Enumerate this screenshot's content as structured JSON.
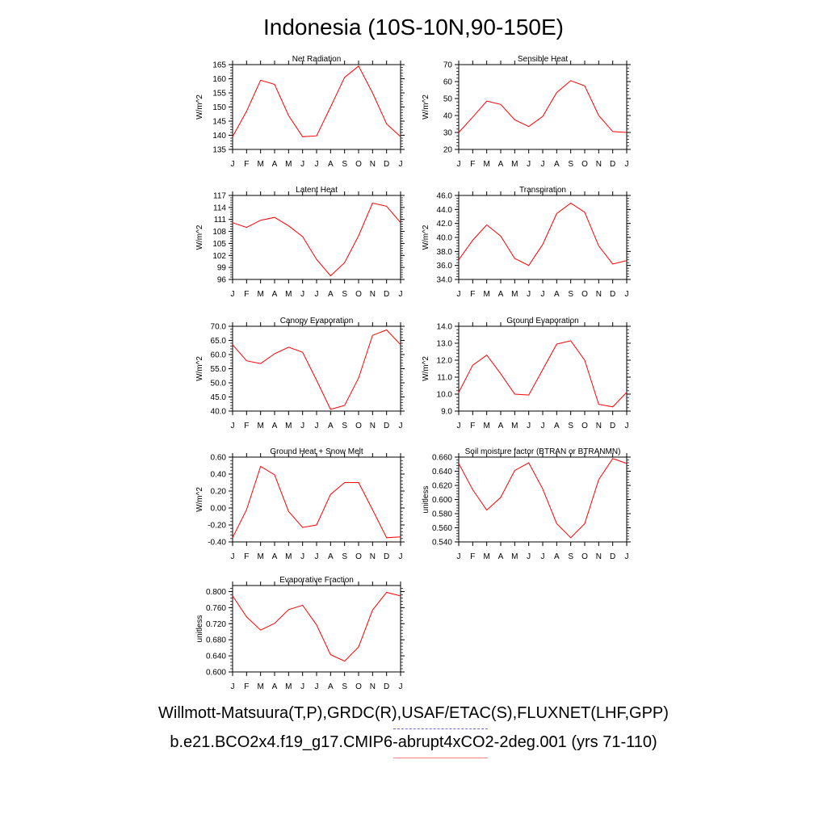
{
  "title": "Indonesia (10S-10N,90-150E)",
  "legend": {
    "obs_label": "Willmott-Matsuura(T,P),GRDC(R),USAF/ETAC(S),FLUXNET(LHF,GPP)",
    "model_label": "b.e21.BCO2x4.f19_g17.CMIP6-abrupt4xCO2-2deg.001 (yrs 71-110)",
    "obs_color": "#6b6bd6",
    "model_color": "#ff0000"
  },
  "chart_data": [
    {
      "type": "line",
      "title": "Net Radiation",
      "ylabel": "W/m^2",
      "ylim": [
        135,
        165
      ],
      "yticks": [
        "135",
        "140",
        "145",
        "150",
        "155",
        "160",
        "165"
      ],
      "categories": [
        "J",
        "F",
        "M",
        "A",
        "M",
        "J",
        "J",
        "A",
        "S",
        "O",
        "N",
        "D",
        "J"
      ],
      "series": [
        {
          "values": [
            139.5,
            148.5,
            159.5,
            158,
            147,
            139.5,
            139.8,
            150,
            160.5,
            164.5,
            155,
            144,
            139.5
          ]
        }
      ]
    },
    {
      "type": "line",
      "title": "Sensible Heat",
      "ylabel": "W/m^2",
      "ylim": [
        20,
        70
      ],
      "yticks": [
        "20",
        "30",
        "40",
        "50",
        "60",
        "70"
      ],
      "categories": [
        "J",
        "F",
        "M",
        "A",
        "M",
        "J",
        "J",
        "A",
        "S",
        "O",
        "N",
        "D",
        "J"
      ],
      "series": [
        {
          "values": [
            30,
            39,
            48.5,
            46.5,
            37.5,
            33.5,
            39.5,
            53.5,
            60.5,
            57.5,
            40,
            30.5,
            30
          ]
        }
      ]
    },
    {
      "type": "line",
      "title": "Latent Heat",
      "ylabel": "W/m^2",
      "ylim": [
        96,
        117
      ],
      "yticks": [
        "96",
        "99",
        "102",
        "105",
        "108",
        "111",
        "114",
        "117"
      ],
      "categories": [
        "J",
        "F",
        "M",
        "A",
        "M",
        "J",
        "J",
        "A",
        "S",
        "O",
        "N",
        "D",
        "J"
      ],
      "series": [
        {
          "values": [
            110.2,
            109,
            110.8,
            111.5,
            109.4,
            106.7,
            101,
            96.9,
            100.2,
            106.9,
            115.1,
            114.3,
            110.2
          ]
        }
      ]
    },
    {
      "type": "line",
      "title": "Transpiration",
      "ylabel": "W/m^2",
      "ylim": [
        34,
        46
      ],
      "yticks": [
        "34.0",
        "36.0",
        "38.0",
        "40.0",
        "42.0",
        "44.0",
        "46.0"
      ],
      "categories": [
        "J",
        "F",
        "M",
        "A",
        "M",
        "J",
        "J",
        "A",
        "S",
        "O",
        "N",
        "D",
        "J"
      ],
      "series": [
        {
          "values": [
            36.8,
            39.6,
            41.8,
            40.2,
            37,
            36,
            39,
            43.4,
            44.9,
            43.6,
            38.8,
            36.2,
            36.7
          ]
        }
      ]
    },
    {
      "type": "line",
      "title": "Canopy Evaporation",
      "ylabel": "W/m^2",
      "ylim": [
        40,
        70
      ],
      "yticks": [
        "40.0",
        "45.0",
        "50.0",
        "55.0",
        "60.0",
        "65.0",
        "70.0"
      ],
      "categories": [
        "J",
        "F",
        "M",
        "A",
        "M",
        "J",
        "J",
        "A",
        "S",
        "O",
        "N",
        "D",
        "J"
      ],
      "series": [
        {
          "values": [
            63.5,
            57.8,
            56.8,
            60.3,
            62.6,
            60.8,
            50.9,
            40.6,
            42,
            51.7,
            66.8,
            68.7,
            63.5
          ]
        }
      ]
    },
    {
      "type": "line",
      "title": "Ground Evaporation",
      "ylabel": "W/m^2",
      "ylim": [
        9,
        14
      ],
      "yticks": [
        "9.0",
        "10.0",
        "11.0",
        "12.0",
        "13.0",
        "14.0"
      ],
      "categories": [
        "J",
        "F",
        "M",
        "A",
        "M",
        "J",
        "J",
        "A",
        "S",
        "O",
        "N",
        "D",
        "J"
      ],
      "series": [
        {
          "values": [
            10.1,
            11.7,
            12.3,
            11.2,
            10,
            9.95,
            11.45,
            12.95,
            13.15,
            12,
            9.4,
            9.25,
            10.1
          ]
        }
      ]
    },
    {
      "type": "line",
      "title": "Ground Heat + Snow Melt",
      "ylabel": "W/m^2",
      "ylim": [
        -0.4,
        0.6
      ],
      "yticks": [
        "-0.40",
        "-0.20",
        "0.00",
        "0.20",
        "0.40",
        "0.60"
      ],
      "categories": [
        "J",
        "F",
        "M",
        "A",
        "M",
        "J",
        "J",
        "A",
        "S",
        "O",
        "N",
        "D",
        "J"
      ],
      "series": [
        {
          "values": [
            -0.35,
            -0.02,
            0.49,
            0.39,
            -0.04,
            -0.23,
            -0.2,
            0.16,
            0.3,
            0.3,
            -0.02,
            -0.35,
            -0.34
          ]
        }
      ]
    },
    {
      "type": "line",
      "title": "Soil moisture factor (BTRAN or BTRANMN)",
      "ylabel": "unitless",
      "ylim": [
        0.54,
        0.66
      ],
      "yticks": [
        "0.540",
        "0.560",
        "0.580",
        "0.600",
        "0.620",
        "0.640",
        "0.660"
      ],
      "categories": [
        "J",
        "F",
        "M",
        "A",
        "M",
        "J",
        "J",
        "A",
        "S",
        "O",
        "N",
        "D",
        "J"
      ],
      "series": [
        {
          "values": [
            0.651,
            0.614,
            0.585,
            0.603,
            0.641,
            0.652,
            0.615,
            0.566,
            0.546,
            0.566,
            0.628,
            0.658,
            0.651
          ]
        }
      ]
    },
    {
      "type": "line",
      "title": "Evaporative Fraction",
      "ylabel": "unitless",
      "ylim": [
        0.6,
        0.815
      ],
      "yticks": [
        "0.600",
        "0.640",
        "0.680",
        "0.720",
        "0.760",
        "0.800"
      ],
      "categories": [
        "J",
        "F",
        "M",
        "A",
        "M",
        "J",
        "J",
        "A",
        "S",
        "O",
        "N",
        "D",
        "J"
      ],
      "series": [
        {
          "values": [
            0.789,
            0.737,
            0.704,
            0.721,
            0.755,
            0.766,
            0.717,
            0.643,
            0.627,
            0.662,
            0.754,
            0.798,
            0.789
          ]
        }
      ]
    }
  ]
}
